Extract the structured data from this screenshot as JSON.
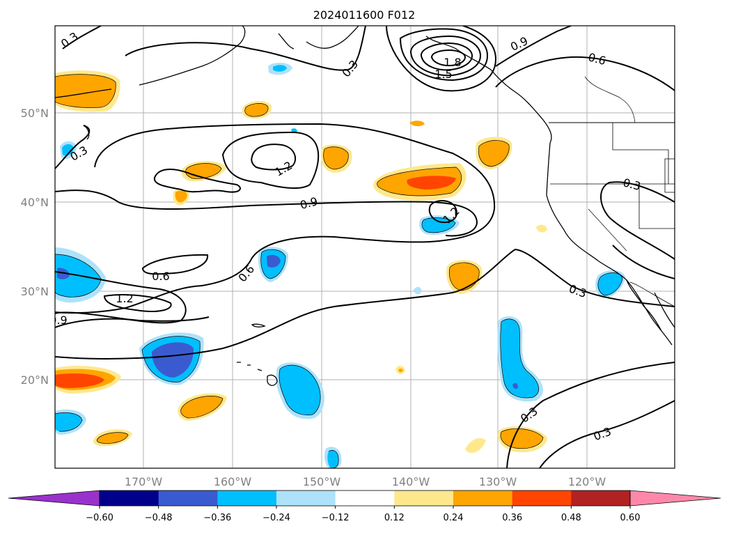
{
  "title": "2024011600 F012",
  "map": {
    "lon_labels": [
      "170°W",
      "160°W",
      "150°W",
      "140°W",
      "130°W",
      "120°W"
    ],
    "lat_labels": [
      "50°N",
      "40°N",
      "30°N",
      "20°N"
    ],
    "contour_labels": [
      "0.3",
      "0.3",
      "1.8",
      "1.5",
      "0.9",
      "0.6",
      "0.3",
      "1.2",
      "0.9",
      "1.2",
      "0.3",
      "0.6",
      "1.2",
      "0.6",
      "0.3",
      "0.9",
      "0.3",
      "0.3"
    ]
  },
  "colorbar": {
    "ticks": [
      "−0.60",
      "−0.48",
      "−0.36",
      "−0.24",
      "−0.12",
      "0.12",
      "0.24",
      "0.36",
      "0.48",
      "0.60"
    ],
    "colors": [
      "#9932cc",
      "#00008b",
      "#3a5bd0",
      "#00bfff",
      "#ade2fa",
      "#ffffff",
      "#ffe88c",
      "#ffa500",
      "#ff4500",
      "#b22222",
      "#ff88aa"
    ]
  }
}
